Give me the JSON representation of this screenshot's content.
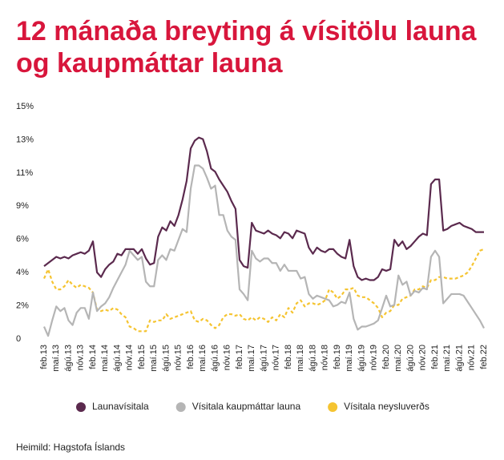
{
  "chart_data": {
    "type": "line",
    "title": "12 mánaða breyting á vísitölu launa og kaupmáttar launa",
    "source": "Heimild: Hagstofa Íslands",
    "categories": [
      "feb.13",
      null,
      null,
      "maí.13",
      null,
      null,
      "ágú.13",
      null,
      null,
      "nóv.13",
      null,
      null,
      "feb.14",
      null,
      null,
      "maí.14",
      null,
      null,
      "ágú.14",
      null,
      null,
      "nóv.14",
      null,
      null,
      "feb.15",
      null,
      null,
      "maí.15",
      null,
      null,
      "ágú.15",
      null,
      null,
      "nóv.15",
      null,
      null,
      "feb.16",
      null,
      null,
      "maí.16",
      null,
      null,
      "ágú.16",
      null,
      null,
      "nóv.16",
      null,
      null,
      "feb.17",
      null,
      null,
      "maí.17",
      null,
      null,
      "ágú.17",
      null,
      null,
      "nóv.17",
      null,
      null,
      "feb.18",
      null,
      null,
      "maí.18",
      null,
      null,
      "ágú.18",
      null,
      null,
      "nóv.18",
      null,
      null,
      "feb.19",
      null,
      null,
      "maí.19",
      null,
      null,
      "ágú.19",
      null,
      null,
      "nóv.19",
      null,
      null,
      "feb.20",
      null,
      null,
      "maí.20",
      null,
      null,
      "ágú.20",
      null,
      null,
      "nóv.20",
      null,
      null,
      "feb.21",
      null,
      null,
      "maí.21",
      null,
      null,
      "ágú.21",
      null,
      null,
      "nóv.21",
      null,
      null,
      "feb.22"
    ],
    "series": [
      {
        "name": "Launavísitala",
        "color": "#5b2a4e",
        "line_style": "solid",
        "values": [
          4.7,
          4.9,
          5.1,
          5.3,
          5.2,
          5.3,
          5.2,
          5.4,
          5.5,
          5.6,
          5.5,
          5.7,
          6.3,
          4.3,
          4.0,
          4.5,
          4.8,
          5.0,
          5.5,
          5.4,
          5.8,
          5.8,
          5.8,
          5.5,
          5.8,
          5.2,
          4.8,
          4.9,
          6.6,
          7.2,
          7.0,
          7.6,
          7.3,
          8.0,
          9.0,
          10.2,
          12.3,
          12.8,
          13.0,
          12.9,
          12.1,
          11.0,
          10.8,
          10.3,
          9.9,
          9.5,
          8.9,
          8.4,
          5.1,
          4.7,
          4.6,
          7.5,
          7.0,
          6.9,
          6.8,
          7.0,
          6.8,
          6.7,
          6.5,
          6.9,
          6.8,
          6.5,
          7.0,
          6.9,
          6.8,
          5.9,
          5.5,
          5.9,
          5.7,
          5.6,
          5.8,
          5.8,
          5.5,
          5.3,
          5.2,
          6.4,
          4.7,
          4.0,
          3.8,
          3.9,
          3.8,
          3.8,
          4.0,
          4.5,
          4.4,
          4.5,
          6.4,
          6.0,
          6.3,
          5.8,
          6.0,
          6.3,
          6.6,
          6.8,
          6.7,
          10.0,
          10.3,
          10.3,
          7.0,
          7.1,
          7.3,
          7.4,
          7.5,
          7.3,
          7.2,
          7.1,
          6.9,
          6.9,
          6.9
        ]
      },
      {
        "name": "Vísitala kaupmáttar launa",
        "color": "#b5b5b5",
        "line_style": "solid",
        "values": [
          0.8,
          0.2,
          1.2,
          2.1,
          1.8,
          2.0,
          1.2,
          0.9,
          1.7,
          2.0,
          2.0,
          1.3,
          3.0,
          1.8,
          2.1,
          2.3,
          2.7,
          3.3,
          3.8,
          4.3,
          4.8,
          5.7,
          5.4,
          5.1,
          5.3,
          3.7,
          3.4,
          3.4,
          5.1,
          5.4,
          5.1,
          5.8,
          5.7,
          6.4,
          7.1,
          6.9,
          9.7,
          11.2,
          11.2,
          11.0,
          10.4,
          9.7,
          9.9,
          8.0,
          8.0,
          7.0,
          6.6,
          6.4,
          3.2,
          2.9,
          2.5,
          5.7,
          5.2,
          5.0,
          5.2,
          5.2,
          4.9,
          4.9,
          4.4,
          4.8,
          4.4,
          4.4,
          4.4,
          3.9,
          4.0,
          2.9,
          2.6,
          2.8,
          2.7,
          2.6,
          2.5,
          2.1,
          2.2,
          2.4,
          2.3,
          3.0,
          1.3,
          0.6,
          0.8,
          0.8,
          0.9,
          1.0,
          1.2,
          2.0,
          2.8,
          2.1,
          2.2,
          4.1,
          3.5,
          3.7,
          2.8,
          3.1,
          3.0,
          3.3,
          3.2,
          5.3,
          5.7,
          5.3,
          2.3,
          2.6,
          2.9,
          2.9,
          2.9,
          2.8,
          2.4,
          2.0,
          1.6,
          1.2,
          0.7
        ]
      },
      {
        "name": "Vísitala neysluverðs",
        "color": "#f5c431",
        "line_style": "dashed",
        "values": [
          3.9,
          4.5,
          3.7,
          3.2,
          3.2,
          3.4,
          3.8,
          3.5,
          3.3,
          3.5,
          3.4,
          3.3,
          3.0,
          1.9,
          1.8,
          1.9,
          1.8,
          2.0,
          1.9,
          1.6,
          1.4,
          0.8,
          0.7,
          0.5,
          0.5,
          0.5,
          1.2,
          1.1,
          1.2,
          1.2,
          1.6,
          1.3,
          1.4,
          1.5,
          1.6,
          1.7,
          1.8,
          1.2,
          1.1,
          1.3,
          1.2,
          0.9,
          0.7,
          0.9,
          1.4,
          1.6,
          1.6,
          1.5,
          1.6,
          1.3,
          1.2,
          1.4,
          1.2,
          1.4,
          1.3,
          1.1,
          1.4,
          1.2,
          1.6,
          1.4,
          2.0,
          1.7,
          2.3,
          2.5,
          2.1,
          2.3,
          2.3,
          2.2,
          2.3,
          2.5,
          3.2,
          3.0,
          2.6,
          2.8,
          3.2,
          3.2,
          3.3,
          2.8,
          2.7,
          2.7,
          2.5,
          2.3,
          2.0,
          1.4,
          1.7,
          1.8,
          2.2,
          2.2,
          2.6,
          2.7,
          2.8,
          3.2,
          3.2,
          3.4,
          3.3,
          3.8,
          3.8,
          4.0,
          4.0,
          3.9,
          3.9,
          3.9,
          4.0,
          4.1,
          4.3,
          4.7,
          5.2,
          5.7,
          5.8
        ]
      }
    ],
    "ylim": [
      0,
      15
    ],
    "yticks": [
      0,
      {
        "value": 2.14,
        "label": "2%"
      },
      {
        "value": 4.29,
        "label": "4%"
      },
      {
        "value": 6.43,
        "label": "6%"
      },
      {
        "value": 8.57,
        "label": "9%"
      },
      {
        "value": 10.71,
        "label": "11%"
      },
      {
        "value": 12.86,
        "label": "13%"
      },
      {
        "value": 15,
        "label": "15%"
      }
    ],
    "grid": false,
    "legend": "bottom"
  }
}
